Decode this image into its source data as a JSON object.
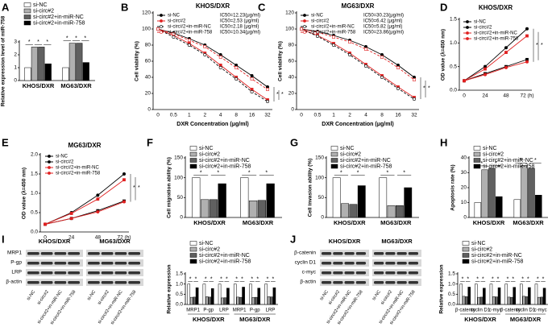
{
  "chart_data": [
    {
      "type": "bar",
      "panel": "A",
      "ylabel": "Relative expression level of miR-758",
      "categories": [
        "KHOS/DXR",
        "MG63/DXR"
      ],
      "series": [
        {
          "name": "si-NC",
          "color": "#ffffff",
          "values": [
            1,
            1
          ]
        },
        {
          "name": "si-circ#2",
          "color": "#b0b0b0",
          "values": [
            2.6,
            2.9
          ]
        },
        {
          "name": "si-circ#2+in-miR-NC",
          "color": "#606060",
          "values": [
            2.6,
            2.9
          ]
        },
        {
          "name": "si-circ#2+in-miR-758",
          "color": "#000000",
          "values": [
            1.3,
            1.4
          ]
        }
      ],
      "ylim": [
        0,
        3
      ],
      "yticks": [
        0,
        1,
        2,
        3
      ],
      "significance": [
        "*",
        "*",
        "*",
        "*",
        "*",
        "*"
      ]
    },
    {
      "type": "line",
      "panel": "B",
      "title": "KHOS/DXR",
      "xlabel": "DXR Concentration (μg/ml)",
      "ylabel": "Cell viability (%)",
      "categories": [
        "0",
        "0.5",
        "1",
        "2",
        "4",
        "8",
        "16",
        "32"
      ],
      "series": [
        {
          "name": "si-NC",
          "color": "#000000",
          "dashed": false,
          "values": [
            100,
            95,
            88,
            80,
            68,
            55,
            42,
            28
          ]
        },
        {
          "name": "si-circ#2",
          "color": "#e02020",
          "dashed": false,
          "values": [
            100,
            92,
            82,
            70,
            55,
            40,
            25,
            12
          ]
        },
        {
          "name": "si-circ#2+in-miR-NC",
          "color": "#000000",
          "dashed": true,
          "values": [
            100,
            90,
            80,
            68,
            52,
            38,
            22,
            10
          ]
        },
        {
          "name": "si-circ#2+in-miR-758",
          "color": "#e02020",
          "dashed": true,
          "values": [
            100,
            94,
            86,
            78,
            65,
            52,
            38,
            25
          ]
        }
      ],
      "annotations": [
        "IC50=12.23(μg/ml)",
        "IC50=2.53 (μg/ml)",
        "IC50=2.18 (μg/ml)",
        "IC50=10.34(μg/ml)"
      ],
      "ylim": [
        0,
        120
      ],
      "yticks": [
        0,
        20,
        40,
        60,
        80,
        100,
        120
      ],
      "significance": [
        "*",
        "*"
      ]
    },
    {
      "type": "line",
      "panel": "C",
      "title": "MG63/DXR",
      "xlabel": "DXR Concentration (μg/ml)",
      "ylabel": "Cell viability (%)",
      "categories": [
        "0",
        "0.5",
        "1",
        "2",
        "4",
        "8",
        "16",
        "32"
      ],
      "series": [
        {
          "name": "si-NC",
          "color": "#000000",
          "dashed": false,
          "values": [
            100,
            97,
            92,
            86,
            78,
            68,
            55,
            40
          ]
        },
        {
          "name": "si-circ#2",
          "color": "#e02020",
          "dashed": false,
          "values": [
            100,
            92,
            82,
            70,
            56,
            42,
            28,
            15
          ]
        },
        {
          "name": "si-circ#2+in-miR-NC",
          "color": "#000000",
          "dashed": true,
          "values": [
            100,
            91,
            80,
            68,
            54,
            40,
            26,
            13
          ]
        },
        {
          "name": "si-circ#2+in-miR-758",
          "color": "#e02020",
          "dashed": true,
          "values": [
            100,
            96,
            90,
            84,
            75,
            65,
            52,
            37
          ]
        }
      ],
      "annotations": [
        "IC50=30.23(μg/ml)",
        "IC50=6.42 (μg/ml)",
        "IC50=5.82 (μg/ml)",
        "IC50=23.86(μg/ml)"
      ],
      "ylim": [
        0,
        120
      ],
      "yticks": [
        0,
        20,
        40,
        60,
        80,
        100,
        120
      ],
      "significance": [
        "*",
        "*"
      ]
    },
    {
      "type": "line",
      "panel": "D",
      "title": "KHOS/DXR",
      "ylabel": "OD value (λ=450 nm)",
      "categories": [
        "0",
        "24",
        "48",
        "72 (h)"
      ],
      "series": [
        {
          "name": "si-NC",
          "color": "#000000",
          "dashed": false,
          "values": [
            0.2,
            0.5,
            0.9,
            1.3
          ]
        },
        {
          "name": "si-circ#2",
          "color": "#000000",
          "dashed": false,
          "values": [
            0.2,
            0.35,
            0.5,
            0.65
          ]
        },
        {
          "name": "si-circ#2+in-miR-NC",
          "color": "#e02020",
          "dashed": false,
          "values": [
            0.2,
            0.33,
            0.48,
            0.6
          ]
        },
        {
          "name": "si-circ#2+in-miR-758",
          "color": "#e02020",
          "dashed": false,
          "values": [
            0.2,
            0.45,
            0.8,
            1.15
          ]
        }
      ],
      "ylim": [
        0,
        1.5
      ],
      "yticks": [
        {
          "value": 0,
          "label": "0.0"
        },
        0.5,
        {
          "value": 1,
          "label": "1.0"
        },
        1.5
      ],
      "significance": [
        "*",
        "*"
      ]
    },
    {
      "type": "line",
      "panel": "E",
      "title": "MG63/DXR",
      "ylabel": "OD value (λ=450 nm)",
      "categories": [
        "0",
        "24",
        "48",
        "72 (h)"
      ],
      "series": [
        {
          "name": "si-NC",
          "color": "#000000",
          "dashed": false,
          "values": [
            0.2,
            0.5,
            0.95,
            1.5
          ]
        },
        {
          "name": "si-circ#2",
          "color": "#000000",
          "dashed": false,
          "values": [
            0.2,
            0.35,
            0.55,
            0.8
          ]
        },
        {
          "name": "si-circ#2+in-miR-NC",
          "color": "#e02020",
          "dashed": false,
          "values": [
            0.2,
            0.35,
            0.52,
            0.78
          ]
        },
        {
          "name": "si-circ#2+in-miR-758",
          "color": "#e02020",
          "dashed": false,
          "values": [
            0.2,
            0.48,
            0.85,
            1.35
          ]
        }
      ],
      "ylim": [
        0,
        2
      ],
      "yticks": [
        {
          "value": 0,
          "label": "0.0"
        },
        0.5,
        {
          "value": 1,
          "label": "1.0"
        },
        1.5,
        {
          "value": 2,
          "label": "2.0"
        }
      ],
      "significance": [
        "*",
        "*"
      ]
    },
    {
      "type": "bar",
      "panel": "F",
      "ylabel": "Cell migration ability (%)",
      "categories": [
        "KHOS/DXR",
        "MG63/DXR"
      ],
      "series": [
        {
          "name": "si-NC",
          "color": "#ffffff",
          "values": [
            100,
            100
          ]
        },
        {
          "name": "si-circ#2",
          "color": "#b0b0b0",
          "values": [
            45,
            42
          ]
        },
        {
          "name": "si-circ#2+in-miR-NC",
          "color": "#606060",
          "values": [
            45,
            43
          ]
        },
        {
          "name": "si-circ#2+in-miR-758",
          "color": "#000000",
          "values": [
            85,
            85
          ]
        }
      ],
      "ylim": [
        0,
        150
      ],
      "yticks": [
        0,
        50,
        100,
        150
      ],
      "significance": [
        "*",
        "*",
        "*",
        "*"
      ]
    },
    {
      "type": "bar",
      "panel": "G",
      "ylabel": "Cell invasion ability (%)",
      "categories": [
        "KHOS/DXR",
        "MG63/DXR"
      ],
      "series": [
        {
          "name": "si-NC",
          "color": "#ffffff",
          "values": [
            100,
            100
          ]
        },
        {
          "name": "si-circ#2",
          "color": "#b0b0b0",
          "values": [
            35,
            30
          ]
        },
        {
          "name": "si-circ#2+in-miR-NC",
          "color": "#606060",
          "values": [
            33,
            30
          ]
        },
        {
          "name": "si-circ#2+in-miR-758",
          "color": "#000000",
          "values": [
            80,
            75
          ]
        }
      ],
      "ylim": [
        0,
        150
      ],
      "yticks": [
        0,
        50,
        100,
        150
      ],
      "significance": [
        "*",
        "*",
        "*",
        "*"
      ]
    },
    {
      "type": "bar",
      "panel": "H",
      "ylabel": "Apoptosis rate (%)",
      "categories": [
        "KHOS/DXR",
        "MG63/DXR"
      ],
      "series": [
        {
          "name": "si-NC",
          "color": "#ffffff",
          "values": [
            10,
            12
          ]
        },
        {
          "name": "si-circ#2",
          "color": "#b0b0b0",
          "values": [
            32,
            35
          ]
        },
        {
          "name": "si-circ#2+in-miR-NC",
          "color": "#606060",
          "values": [
            33,
            33
          ]
        },
        {
          "name": "si-circ#2+in-miR-758",
          "color": "#000000",
          "values": [
            14,
            15
          ]
        }
      ],
      "ylim": [
        0,
        40
      ],
      "yticks": [
        0,
        10,
        20,
        30,
        40
      ],
      "significance": [
        "*",
        "*",
        "*",
        "*"
      ]
    },
    {
      "type": "bar",
      "panel": "I",
      "ylabel": "Relative expression",
      "categories": [
        "MRP1",
        "P-gp",
        "LRP",
        "MRP1",
        "P-gp",
        "LRP"
      ],
      "groups": [
        "KHOS/DXR",
        "MG63/DXR"
      ],
      "series": [
        {
          "name": "si-NC",
          "color": "#ffffff",
          "values": [
            1,
            1,
            1,
            1,
            1,
            1
          ]
        },
        {
          "name": "si-circ#2",
          "color": "#b0b0b0",
          "values": [
            0.35,
            0.38,
            0.32,
            0.36,
            0.34,
            0.38
          ]
        },
        {
          "name": "si-circ#2+in-miR-NC",
          "color": "#606060",
          "values": [
            0.36,
            0.36,
            0.33,
            0.35,
            0.35,
            0.37
          ]
        },
        {
          "name": "si-circ#2+in-miR-758",
          "color": "#000000",
          "values": [
            0.82,
            0.78,
            0.8,
            0.85,
            0.8,
            0.82
          ]
        }
      ],
      "ylim": [
        0,
        1.5
      ],
      "yticks": [
        {
          "value": 0,
          "label": "0.0"
        },
        0.5,
        {
          "value": 1,
          "label": "1.0"
        },
        1.5
      ],
      "significance": [
        "*",
        "*",
        "*",
        "*",
        "*",
        "*",
        "*",
        "*",
        "*",
        "*",
        "*",
        "*"
      ],
      "blot": {
        "headers": [
          "KHOS/DXR",
          "MG63/DXR"
        ],
        "proteins": [
          "MRP1",
          "P-gp",
          "LRP",
          "β-actin"
        ],
        "lanes": [
          "si-NC",
          "si-circ#2",
          "si-circ#2+in-miR-NC",
          "si-circ#2+in-miR-758",
          "si-NC",
          "si-circ#2",
          "si-circ#2+in-miR-NC",
          "si-circ#2+in-miR-758"
        ]
      }
    },
    {
      "type": "bar",
      "panel": "J",
      "ylabel": "Relative expression",
      "categories": [
        "β-catenin",
        "cyclin D1",
        "c-myc",
        "β-catenin",
        "cyclin D1",
        "c-myc"
      ],
      "groups": [
        "KHOS/DXR",
        "MG63/DXR"
      ],
      "series": [
        {
          "name": "si-NC",
          "color": "#ffffff",
          "values": [
            1,
            1,
            1,
            1,
            1,
            1
          ]
        },
        {
          "name": "si-circ#2",
          "color": "#b0b0b0",
          "values": [
            0.4,
            0.35,
            0.38,
            0.36,
            0.4,
            0.35
          ]
        },
        {
          "name": "si-circ#2+in-miR-NC",
          "color": "#606060",
          "values": [
            0.38,
            0.36,
            0.37,
            0.35,
            0.38,
            0.36
          ]
        },
        {
          "name": "si-circ#2+in-miR-758",
          "color": "#000000",
          "values": [
            0.85,
            0.8,
            0.82,
            0.84,
            0.83,
            0.8
          ]
        }
      ],
      "ylim": [
        0,
        1.5
      ],
      "yticks": [
        {
          "value": 0,
          "label": "0.0"
        },
        0.5,
        {
          "value": 1,
          "label": "1.0"
        },
        1.5
      ],
      "significance": [
        "*",
        "*",
        "*",
        "*",
        "*",
        "*",
        "*",
        "*",
        "*",
        "*",
        "*",
        "*"
      ],
      "blot": {
        "headers": [
          "KHOS/DXR",
          "MG63/DXR"
        ],
        "proteins": [
          "β-catenin",
          "cyclin D1",
          "c-myc",
          "β-actin"
        ],
        "lanes": [
          "si-NC",
          "si-circ#2",
          "si-circ#2+in-miR-NC",
          "si-circ#2+in-miR-758",
          "si-NC",
          "si-circ#2",
          "si-circ#2+in-miR-NC",
          "si-circ#2+in-miR-758"
        ]
      }
    }
  ]
}
